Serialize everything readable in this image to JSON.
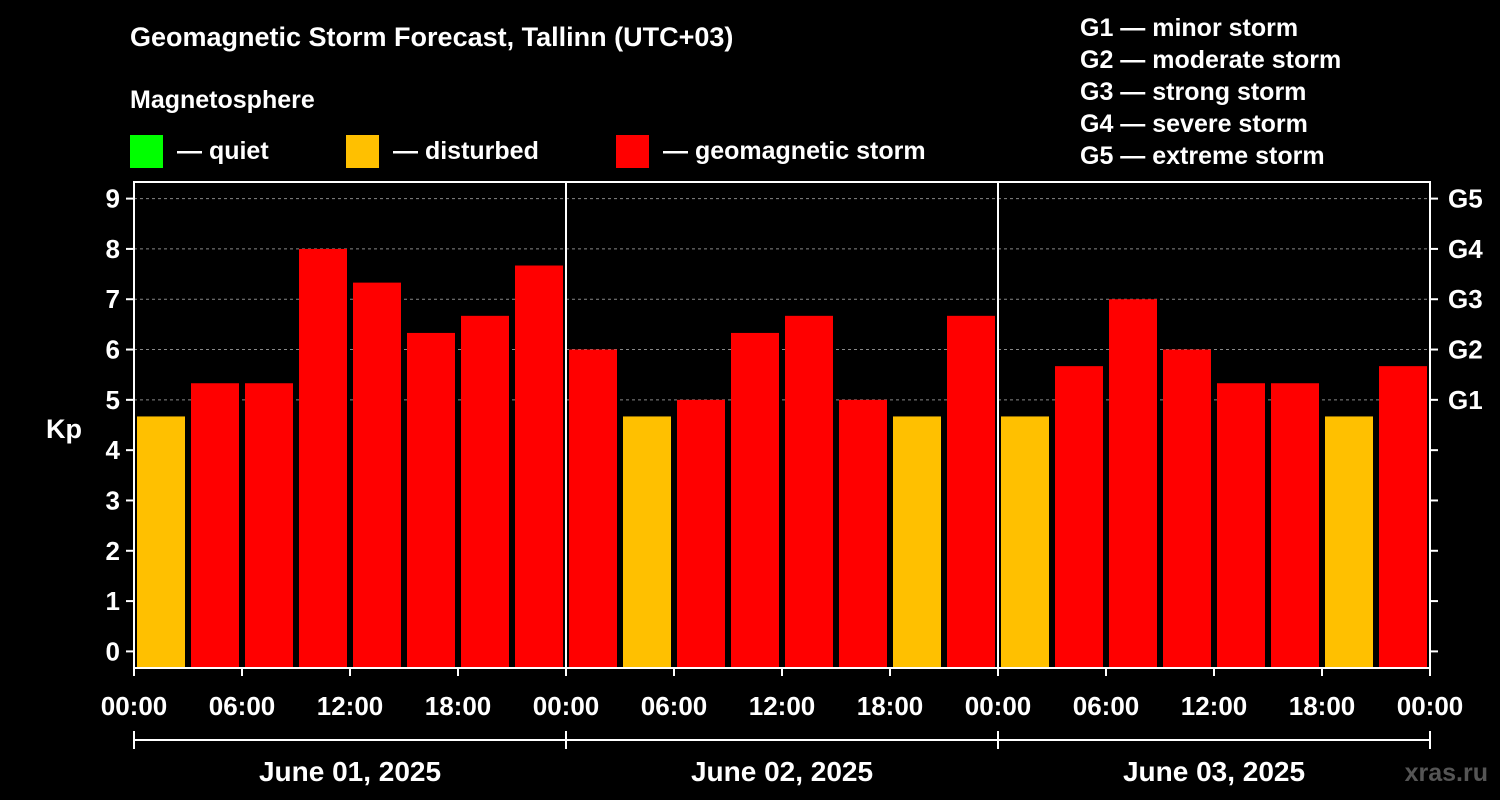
{
  "title": "Geomagnetic Storm Forecast, Tallinn (UTC+03)",
  "legend": {
    "heading": "Magnetosphere",
    "items": [
      {
        "id": "quiet",
        "label": "— quiet",
        "color": "#00ff00"
      },
      {
        "id": "disturbed",
        "label": "— disturbed",
        "color": "#ffc000"
      },
      {
        "id": "storm",
        "label": "— geomagnetic storm",
        "color": "#ff0000"
      }
    ]
  },
  "g_levels": [
    "G1 — minor storm",
    "G2 — moderate storm",
    "G3 — strong storm",
    "G4 — severe storm",
    "G5 — extreme storm"
  ],
  "watermark": "xras.ru",
  "chart_data": {
    "type": "bar",
    "ylabel": "Kp",
    "ylim": [
      -0.33,
      9.33
    ],
    "yticks": [
      "0",
      "1",
      "2",
      "3",
      "4",
      "5",
      "6",
      "7",
      "8",
      "9"
    ],
    "right_ticks": [
      {
        "kp": 5,
        "label": "G1"
      },
      {
        "kp": 6,
        "label": "G2"
      },
      {
        "kp": 7,
        "label": "G3"
      },
      {
        "kp": 8,
        "label": "G4"
      },
      {
        "kp": 9,
        "label": "G5"
      }
    ],
    "grid": "horizontal dashed at Kp 5–9",
    "xtick_labels": [
      "00:00",
      "06:00",
      "12:00",
      "18:00",
      "00:00",
      "06:00",
      "12:00",
      "18:00",
      "00:00",
      "06:00",
      "12:00",
      "18:00",
      "00:00"
    ],
    "days": [
      "June 01, 2025",
      "June 02, 2025",
      "June 03, 2025"
    ],
    "interval_hours": 3,
    "values": [
      4.67,
      5.33,
      5.33,
      8.0,
      7.33,
      6.33,
      6.67,
      7.67,
      6.0,
      4.67,
      5.0,
      6.33,
      6.67,
      5.0,
      4.67,
      6.67,
      4.67,
      5.67,
      7.0,
      6.0,
      5.33,
      5.33,
      4.67,
      5.67
    ],
    "color_thresholds": {
      "disturbed_below": 5,
      "quiet_below": 4
    },
    "colors": {
      "quiet": "#00ff00",
      "disturbed": "#ffc000",
      "storm": "#ff0000",
      "axis": "#ffffff",
      "grid": "#888888"
    }
  }
}
